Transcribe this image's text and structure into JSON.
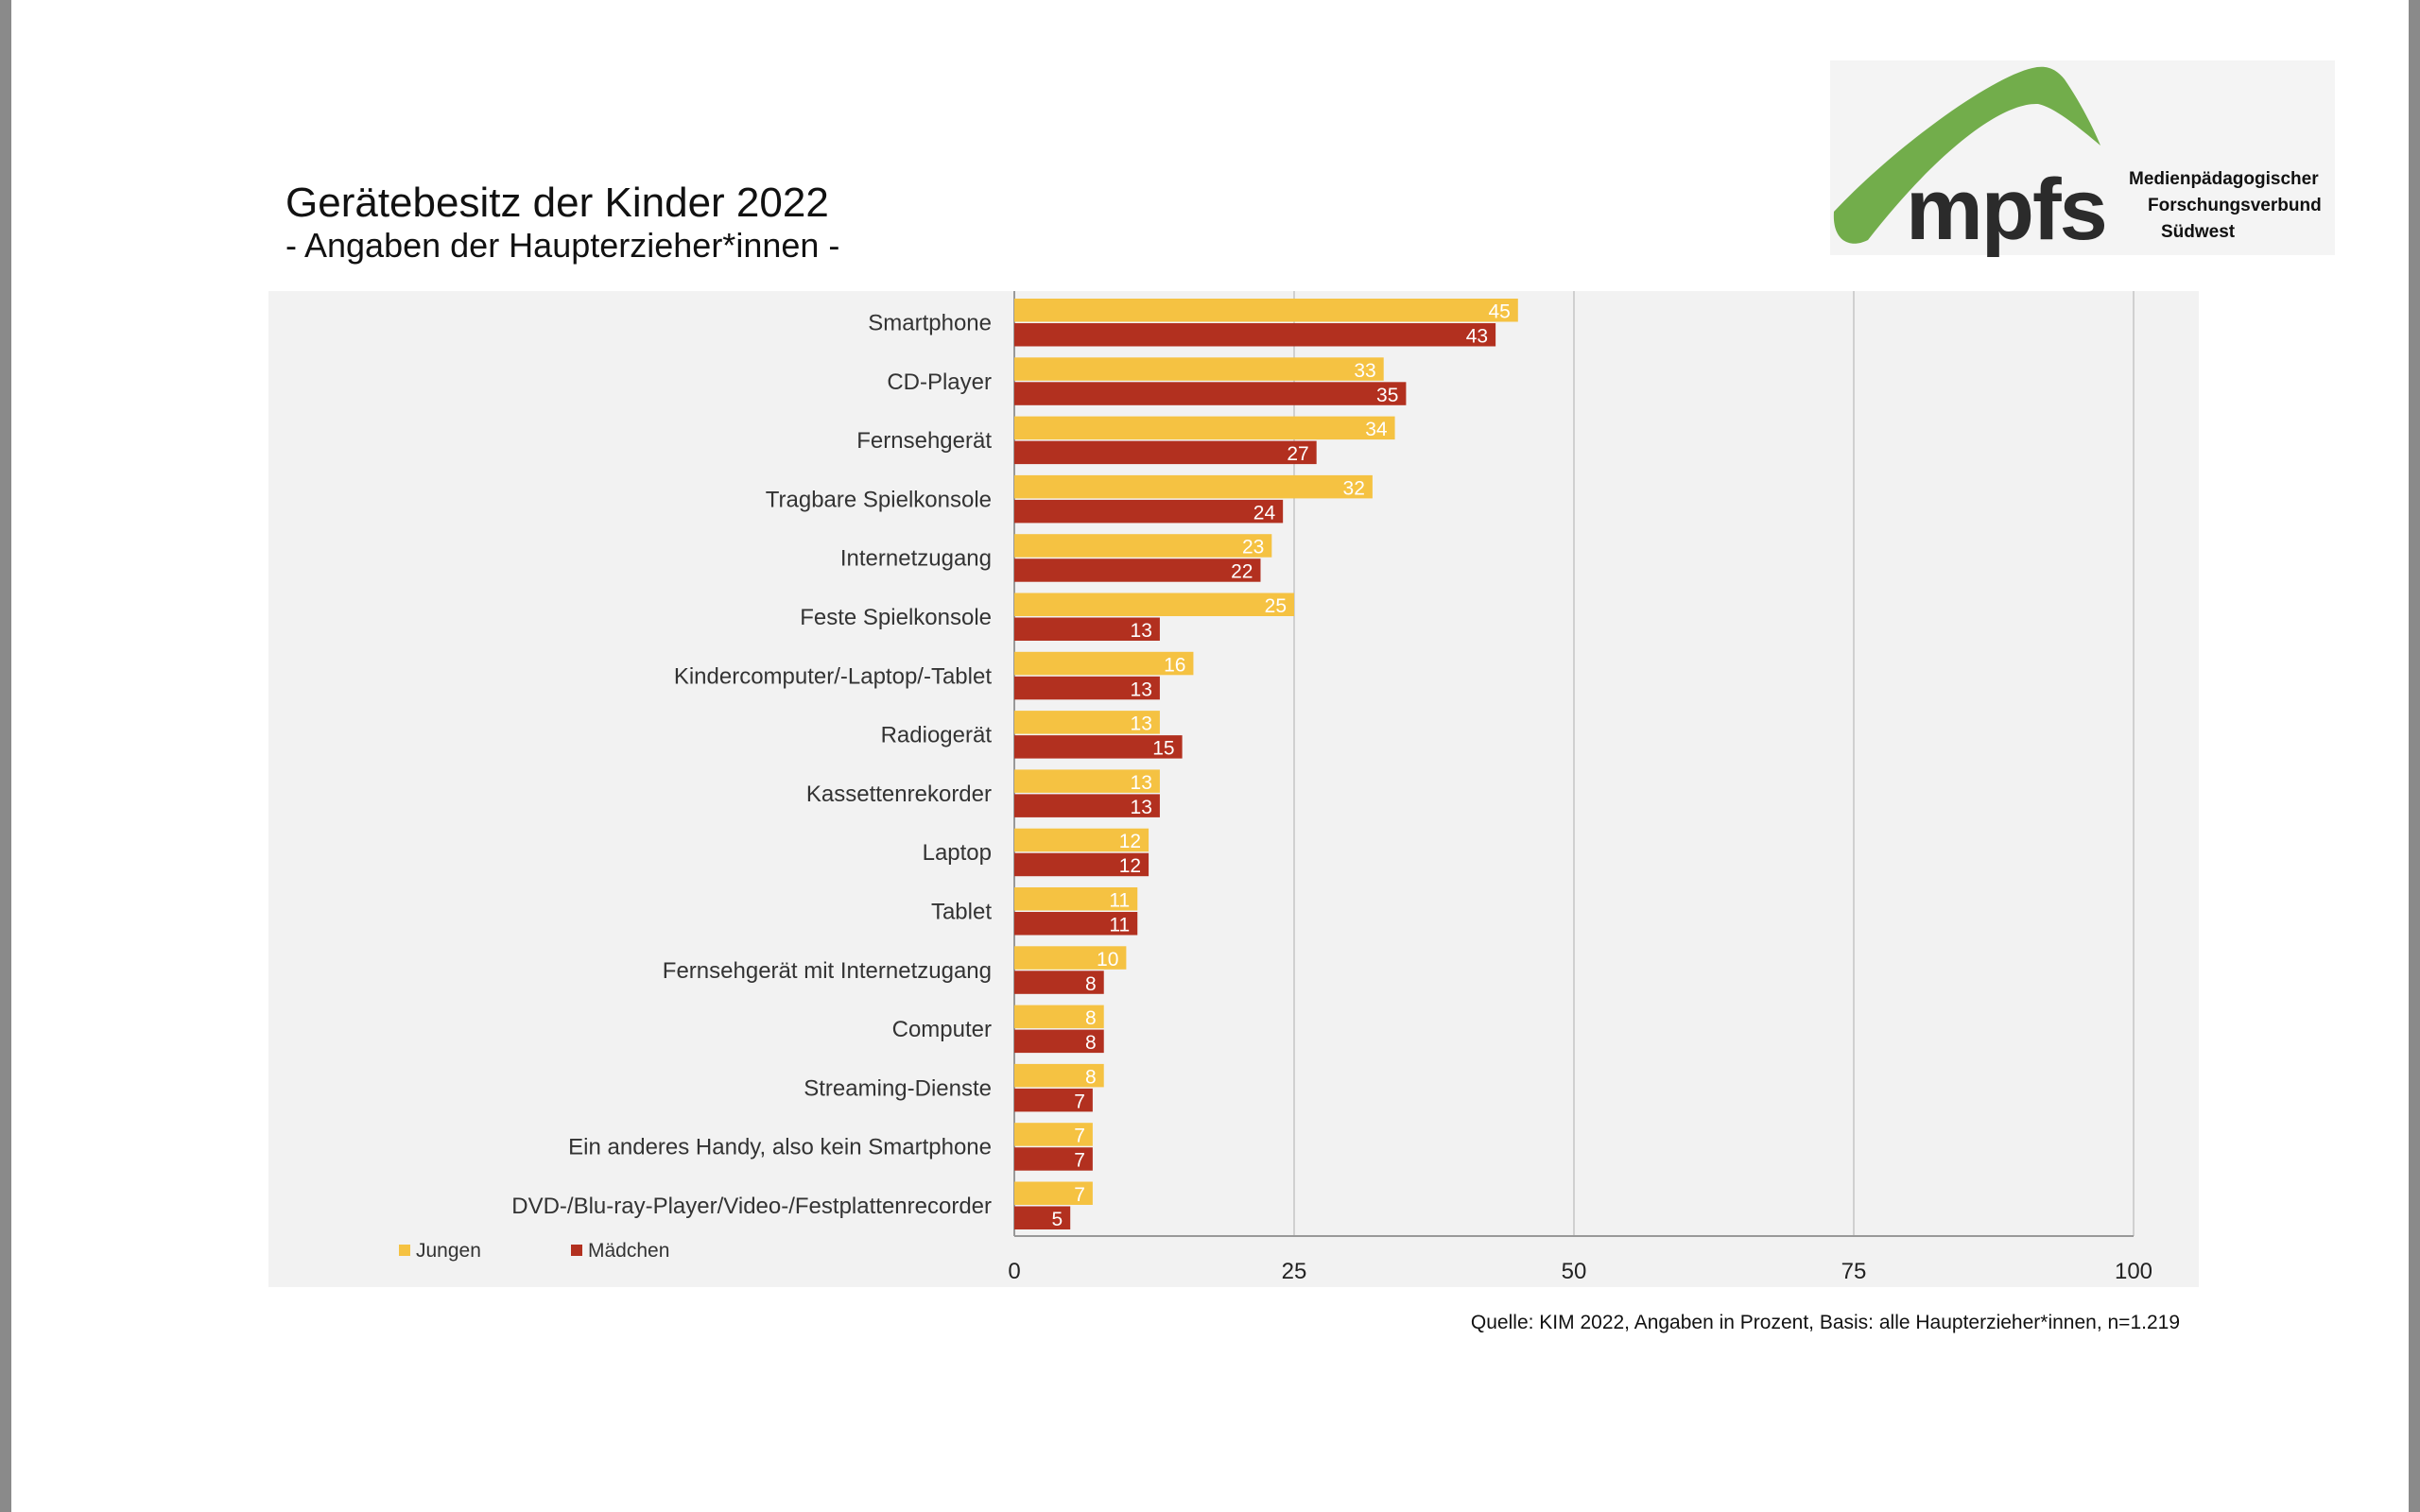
{
  "title": "Gerätebesitz der Kinder 2022",
  "subtitle": "- Angaben der Haupterzieher*innen -",
  "logo": {
    "mark": "mpfs",
    "lines": [
      "Medienpädagogischer",
      "Forschungsverbund",
      "Südwest"
    ]
  },
  "source": "Quelle: KIM 2022, Angaben in Prozent, Basis: alle Haupterzieher*innen, n=1.219",
  "colors": {
    "jungen": "#f5c242",
    "maedchen": "#b2301f",
    "grid": "#d0d0d0",
    "plot_bg": "#f2f2f2"
  },
  "chart_data": {
    "type": "bar",
    "orientation": "horizontal",
    "categories": [
      "Smartphone",
      "CD-Player",
      "Fernsehgerät",
      "Tragbare Spielkonsole",
      "Internetzugang",
      "Feste Spielkonsole",
      "Kindercomputer/-Laptop/-Tablet",
      "Radiogerät",
      "Kassettenrekorder",
      "Laptop",
      "Tablet",
      "Fernsehgerät mit Internetzugang",
      "Computer",
      "Streaming-Dienste",
      "Ein anderes Handy, also kein Smartphone",
      "DVD-/Blu-ray-Player/Video-/Festplattenrecorder"
    ],
    "series": [
      {
        "name": "Jungen",
        "values": [
          45,
          33,
          34,
          32,
          23,
          25,
          16,
          13,
          13,
          12,
          11,
          10,
          8,
          8,
          7,
          7
        ]
      },
      {
        "name": "Mädchen",
        "values": [
          43,
          35,
          27,
          24,
          22,
          13,
          13,
          15,
          13,
          12,
          11,
          8,
          8,
          7,
          7,
          5
        ]
      }
    ],
    "xlim": [
      0,
      100
    ],
    "xticks": [
      0,
      25,
      50,
      75,
      100
    ],
    "grid": true,
    "legend_position": "bottom-left"
  }
}
